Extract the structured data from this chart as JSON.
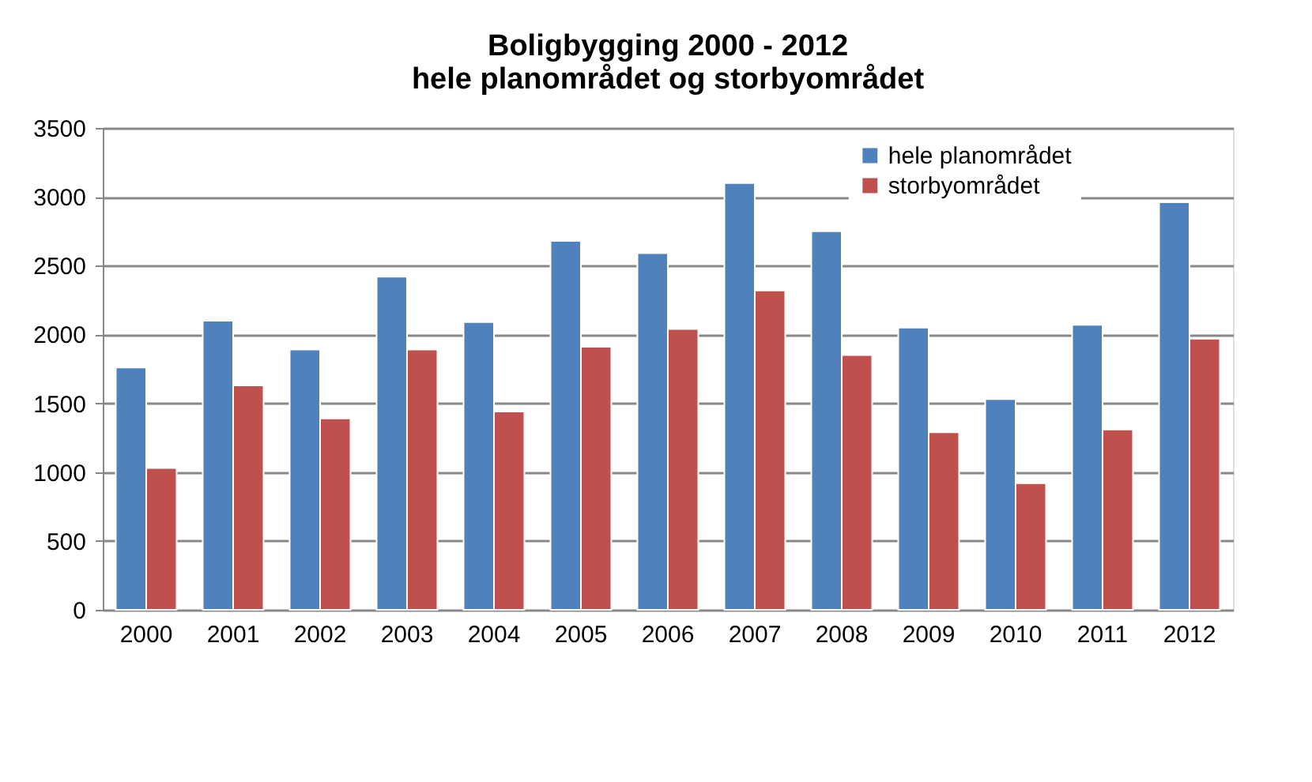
{
  "chart_data": {
    "type": "bar",
    "title": [
      "Boligbygging  2000 - 2012",
      "hele planområdet og storbyområdet"
    ],
    "categories": [
      "2000",
      "2001",
      "2002",
      "2003",
      "2004",
      "2005",
      "2006",
      "2007",
      "2008",
      "2009",
      "2010",
      "2011",
      "2012"
    ],
    "series": [
      {
        "name": "hele planområdet",
        "color": "#4f81bd",
        "values": [
          1760,
          2100,
          1890,
          2420,
          2090,
          2680,
          2590,
          3100,
          2750,
          2050,
          1530,
          2070,
          2960
        ]
      },
      {
        "name": "storbyområdet",
        "color": "#c0504d",
        "values": [
          1030,
          1630,
          1390,
          1890,
          1440,
          1910,
          2040,
          2320,
          1850,
          1290,
          920,
          1310,
          1970
        ]
      }
    ],
    "ylim": [
      0,
      3500
    ],
    "yticks": [
      0,
      500,
      1000,
      1500,
      2000,
      2500,
      3000,
      3500
    ],
    "grid": "y",
    "legend": "top right"
  }
}
